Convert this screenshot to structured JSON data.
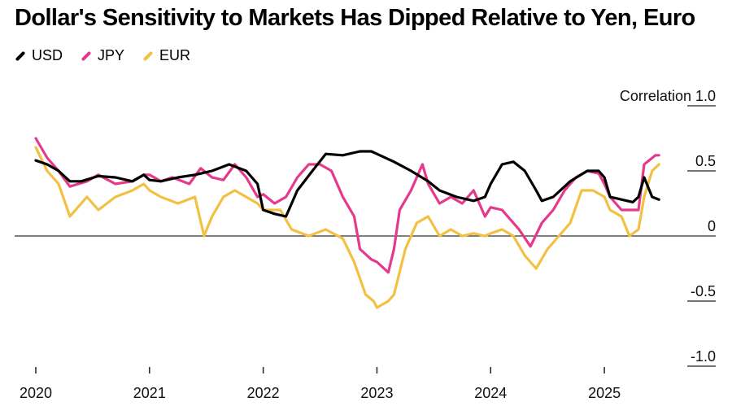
{
  "chart_data": {
    "type": "line",
    "title": "Dollar's Sensitivity to Markets Has Dipped Relative to Yen, Euro",
    "ylabel": "Correlation",
    "y_ticks": [
      1.0,
      0.5,
      0,
      -0.5,
      -1.0
    ],
    "y_tick_labels": [
      "Correlation 1.0",
      "0.5",
      "0",
      "-0.5",
      "-1.0"
    ],
    "ylim": [
      -1.0,
      1.0
    ],
    "x_ticks": [
      2020,
      2021,
      2022,
      2023,
      2024,
      2025
    ],
    "x_tick_labels": [
      "2020",
      "2021",
      "2022",
      "2023",
      "2024",
      "2025"
    ],
    "xlim": [
      2020.0,
      2025.5
    ],
    "series": [
      {
        "name": "USD",
        "color": "#000000",
        "points": [
          [
            2020.0,
            0.58
          ],
          [
            2020.1,
            0.55
          ],
          [
            2020.2,
            0.5
          ],
          [
            2020.3,
            0.42
          ],
          [
            2020.4,
            0.42
          ],
          [
            2020.55,
            0.46
          ],
          [
            2020.7,
            0.45
          ],
          [
            2020.85,
            0.42
          ],
          [
            2020.95,
            0.47
          ],
          [
            2021.0,
            0.43
          ],
          [
            2021.1,
            0.42
          ],
          [
            2021.25,
            0.45
          ],
          [
            2021.4,
            0.47
          ],
          [
            2021.55,
            0.5
          ],
          [
            2021.7,
            0.55
          ],
          [
            2021.85,
            0.5
          ],
          [
            2021.95,
            0.4
          ],
          [
            2022.0,
            0.2
          ],
          [
            2022.1,
            0.17
          ],
          [
            2022.2,
            0.15
          ],
          [
            2022.3,
            0.35
          ],
          [
            2022.45,
            0.52
          ],
          [
            2022.55,
            0.63
          ],
          [
            2022.7,
            0.62
          ],
          [
            2022.85,
            0.65
          ],
          [
            2022.95,
            0.65
          ],
          [
            2023.0,
            0.63
          ],
          [
            2023.15,
            0.57
          ],
          [
            2023.3,
            0.5
          ],
          [
            2023.45,
            0.42
          ],
          [
            2023.55,
            0.35
          ],
          [
            2023.7,
            0.3
          ],
          [
            2023.85,
            0.27
          ],
          [
            2023.95,
            0.3
          ],
          [
            2024.0,
            0.4
          ],
          [
            2024.1,
            0.55
          ],
          [
            2024.2,
            0.57
          ],
          [
            2024.3,
            0.5
          ],
          [
            2024.4,
            0.35
          ],
          [
            2024.45,
            0.27
          ],
          [
            2024.55,
            0.3
          ],
          [
            2024.7,
            0.42
          ],
          [
            2024.85,
            0.5
          ],
          [
            2024.95,
            0.5
          ],
          [
            2025.0,
            0.45
          ],
          [
            2025.05,
            0.3
          ],
          [
            2025.15,
            0.28
          ],
          [
            2025.25,
            0.26
          ],
          [
            2025.3,
            0.3
          ],
          [
            2025.35,
            0.45
          ],
          [
            2025.42,
            0.3
          ],
          [
            2025.48,
            0.28
          ]
        ]
      },
      {
        "name": "JPY",
        "color": "#e5398b",
        "points": [
          [
            2020.0,
            0.75
          ],
          [
            2020.1,
            0.6
          ],
          [
            2020.2,
            0.5
          ],
          [
            2020.3,
            0.38
          ],
          [
            2020.45,
            0.42
          ],
          [
            2020.55,
            0.47
          ],
          [
            2020.7,
            0.4
          ],
          [
            2020.85,
            0.42
          ],
          [
            2020.95,
            0.47
          ],
          [
            2021.0,
            0.47
          ],
          [
            2021.1,
            0.42
          ],
          [
            2021.2,
            0.45
          ],
          [
            2021.35,
            0.4
          ],
          [
            2021.45,
            0.52
          ],
          [
            2021.55,
            0.45
          ],
          [
            2021.65,
            0.43
          ],
          [
            2021.75,
            0.55
          ],
          [
            2021.85,
            0.45
          ],
          [
            2021.95,
            0.3
          ],
          [
            2022.0,
            0.32
          ],
          [
            2022.1,
            0.25
          ],
          [
            2022.2,
            0.3
          ],
          [
            2022.3,
            0.45
          ],
          [
            2022.4,
            0.55
          ],
          [
            2022.5,
            0.55
          ],
          [
            2022.6,
            0.5
          ],
          [
            2022.7,
            0.3
          ],
          [
            2022.8,
            0.15
          ],
          [
            2022.85,
            -0.1
          ],
          [
            2022.95,
            -0.18
          ],
          [
            2023.0,
            -0.2
          ],
          [
            2023.1,
            -0.28
          ],
          [
            2023.15,
            -0.1
          ],
          [
            2023.2,
            0.2
          ],
          [
            2023.3,
            0.35
          ],
          [
            2023.4,
            0.55
          ],
          [
            2023.45,
            0.4
          ],
          [
            2023.55,
            0.25
          ],
          [
            2023.65,
            0.3
          ],
          [
            2023.75,
            0.25
          ],
          [
            2023.85,
            0.35
          ],
          [
            2023.95,
            0.15
          ],
          [
            2024.0,
            0.22
          ],
          [
            2024.1,
            0.2
          ],
          [
            2024.15,
            0.15
          ],
          [
            2024.25,
            0.05
          ],
          [
            2024.35,
            -0.08
          ],
          [
            2024.45,
            0.1
          ],
          [
            2024.55,
            0.2
          ],
          [
            2024.65,
            0.35
          ],
          [
            2024.75,
            0.45
          ],
          [
            2024.85,
            0.5
          ],
          [
            2024.95,
            0.48
          ],
          [
            2025.0,
            0.4
          ],
          [
            2025.05,
            0.3
          ],
          [
            2025.15,
            0.2
          ],
          [
            2025.25,
            0.2
          ],
          [
            2025.3,
            0.2
          ],
          [
            2025.35,
            0.55
          ],
          [
            2025.45,
            0.62
          ],
          [
            2025.48,
            0.62
          ]
        ]
      },
      {
        "name": "EUR",
        "color": "#f2c043",
        "points": [
          [
            2020.0,
            0.68
          ],
          [
            2020.1,
            0.5
          ],
          [
            2020.2,
            0.4
          ],
          [
            2020.3,
            0.15
          ],
          [
            2020.45,
            0.3
          ],
          [
            2020.55,
            0.2
          ],
          [
            2020.7,
            0.3
          ],
          [
            2020.85,
            0.35
          ],
          [
            2020.95,
            0.4
          ],
          [
            2021.0,
            0.35
          ],
          [
            2021.1,
            0.3
          ],
          [
            2021.25,
            0.25
          ],
          [
            2021.4,
            0.3
          ],
          [
            2021.48,
            0.0
          ],
          [
            2021.55,
            0.15
          ],
          [
            2021.65,
            0.3
          ],
          [
            2021.75,
            0.35
          ],
          [
            2021.85,
            0.3
          ],
          [
            2021.95,
            0.25
          ],
          [
            2022.0,
            0.2
          ],
          [
            2022.15,
            0.2
          ],
          [
            2022.25,
            0.05
          ],
          [
            2022.4,
            0.0
          ],
          [
            2022.55,
            0.05
          ],
          [
            2022.7,
            -0.02
          ],
          [
            2022.8,
            -0.2
          ],
          [
            2022.9,
            -0.45
          ],
          [
            2022.97,
            -0.5
          ],
          [
            2023.0,
            -0.55
          ],
          [
            2023.1,
            -0.5
          ],
          [
            2023.15,
            -0.45
          ],
          [
            2023.25,
            -0.1
          ],
          [
            2023.35,
            0.1
          ],
          [
            2023.45,
            0.15
          ],
          [
            2023.55,
            0.0
          ],
          [
            2023.65,
            0.05
          ],
          [
            2023.75,
            0.0
          ],
          [
            2023.85,
            0.02
          ],
          [
            2023.95,
            0.0
          ],
          [
            2024.0,
            0.02
          ],
          [
            2024.1,
            0.05
          ],
          [
            2024.2,
            0.0
          ],
          [
            2024.3,
            -0.15
          ],
          [
            2024.4,
            -0.25
          ],
          [
            2024.5,
            -0.1
          ],
          [
            2024.6,
            0.0
          ],
          [
            2024.7,
            0.1
          ],
          [
            2024.8,
            0.35
          ],
          [
            2024.9,
            0.35
          ],
          [
            2025.0,
            0.3
          ],
          [
            2025.05,
            0.2
          ],
          [
            2025.15,
            0.15
          ],
          [
            2025.22,
            0.0
          ],
          [
            2025.3,
            0.05
          ],
          [
            2025.35,
            0.3
          ],
          [
            2025.42,
            0.5
          ],
          [
            2025.48,
            0.55
          ]
        ]
      }
    ]
  }
}
